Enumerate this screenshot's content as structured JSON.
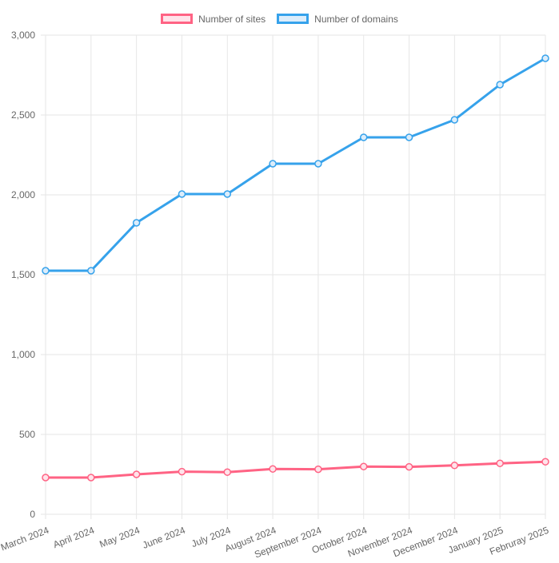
{
  "chart_data": {
    "type": "line",
    "categories": [
      "March 2024",
      "April 2024",
      "May 2024",
      "June 2024",
      "July 2024",
      "August 2024",
      "September 2024",
      "October 2024",
      "November 2024",
      "December 2024",
      "January 2025",
      "Februray 2025"
    ],
    "series": [
      {
        "name": "Number of sites",
        "color": "#ff6384",
        "fill_color": "#ffe3ea",
        "values": [
          230,
          230,
          250,
          267,
          264,
          284,
          282,
          299,
          297,
          306,
          319,
          329
        ]
      },
      {
        "name": "Number of domains",
        "color": "#36a2eb",
        "fill_color": "#dcedfb",
        "values": [
          1525,
          1525,
          1825,
          2005,
          2005,
          2195,
          2195,
          2360,
          2360,
          2470,
          2690,
          2855
        ]
      }
    ],
    "title": "",
    "xlabel": "",
    "ylabel": "",
    "ylim": [
      0,
      3000
    ],
    "ytick_step": 500,
    "ytick_labels": [
      "0",
      "500",
      "1,000",
      "1,500",
      "2,000",
      "2,500",
      "3,000"
    ],
    "grid": true,
    "grid_color": "#e6e6e6",
    "tick_color": "#666666",
    "legend_position": "top"
  }
}
